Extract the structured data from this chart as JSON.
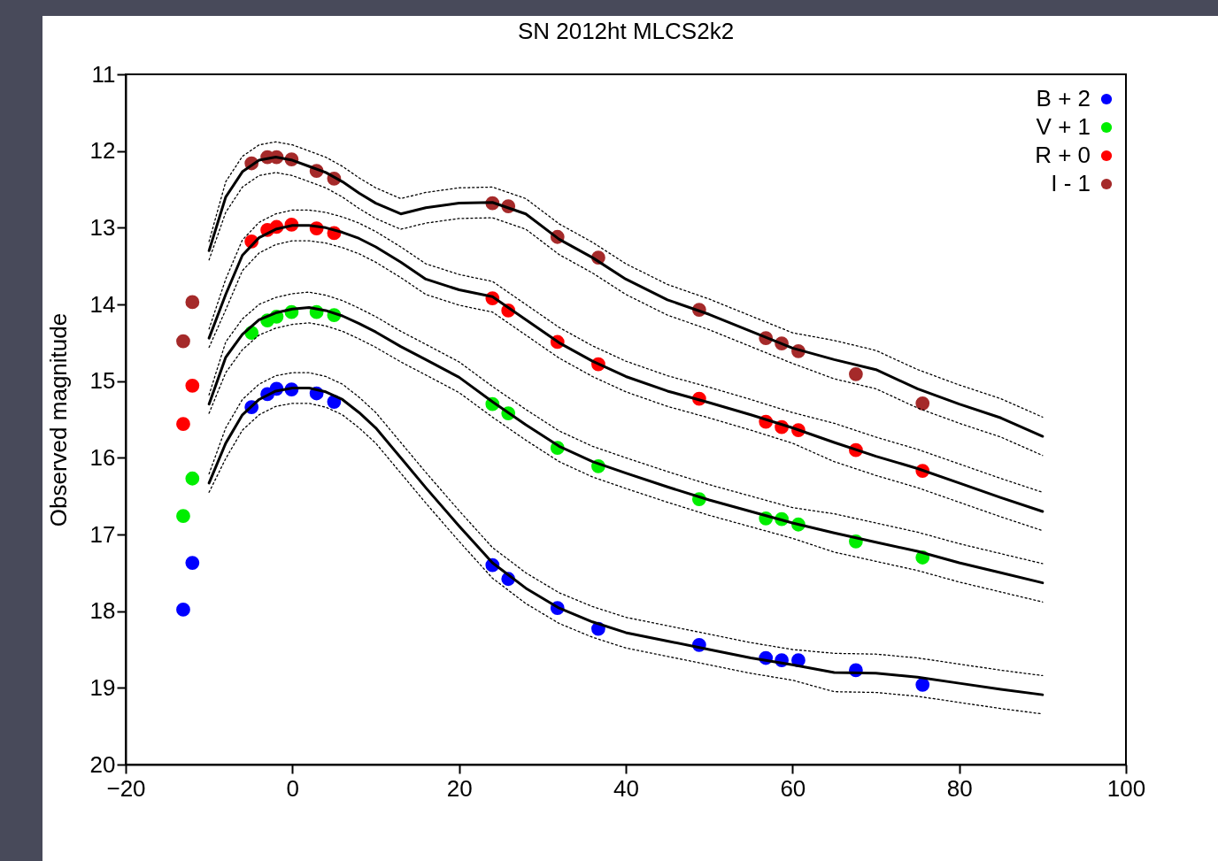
{
  "chart_data": {
    "type": "scatter",
    "title": "SN 2012ht MLCS2k2",
    "ylabel": "Observed magnitude",
    "x": [
      -13.1,
      -12.0,
      -4.9,
      -3.0,
      -1.9,
      -0.1,
      2.9,
      5.0,
      24.0,
      25.9,
      31.8,
      36.7,
      48.8,
      56.8,
      58.7,
      60.7,
      67.6,
      75.6
    ],
    "xlim": [
      -20,
      100
    ],
    "xticks": [
      -20,
      0,
      20,
      40,
      60,
      80,
      100
    ],
    "ylim": [
      20,
      11
    ],
    "yticks": [
      11,
      12,
      13,
      14,
      15,
      16,
      17,
      18,
      19,
      20
    ],
    "grid": false,
    "legend": "top right",
    "marker": "circle",
    "series": [
      {
        "name": "B + 2",
        "color": "#0000ff",
        "values": [
          17.98,
          17.37,
          15.34,
          15.17,
          15.1,
          15.11,
          15.16,
          15.27,
          17.4,
          17.58,
          17.96,
          18.23,
          18.44,
          18.61,
          18.64,
          18.64,
          18.77,
          18.96
        ]
      },
      {
        "name": "V + 1",
        "color": "#00ee00",
        "values": [
          16.76,
          16.27,
          14.37,
          14.21,
          14.16,
          14.1,
          14.1,
          14.14,
          15.3,
          15.42,
          15.87,
          16.11,
          16.54,
          16.79,
          16.8,
          16.87,
          17.09,
          17.3
        ]
      },
      {
        "name": "R + 0",
        "color": "#ff0000",
        "values": [
          15.56,
          15.06,
          13.18,
          13.03,
          12.99,
          12.96,
          13.01,
          13.07,
          13.92,
          14.08,
          14.49,
          14.78,
          15.23,
          15.53,
          15.6,
          15.64,
          15.9,
          16.17
        ]
      },
      {
        "name": "I - 1",
        "color": "#a52a2a",
        "values": [
          14.48,
          13.97,
          12.16,
          12.08,
          12.08,
          12.11,
          12.26,
          12.36,
          12.68,
          12.72,
          13.12,
          13.39,
          14.07,
          14.44,
          14.51,
          14.61,
          14.91,
          15.29
        ]
      },
      {
        "type": "line",
        "marker": "none",
        "line_style": "solid",
        "color": "#000000",
        "x": [
          -10,
          -8,
          -6,
          -4,
          -2,
          0,
          2,
          4,
          6,
          8,
          10,
          13,
          16,
          20,
          24,
          28,
          32,
          36,
          40,
          45,
          50,
          55,
          60,
          65,
          70,
          75,
          80,
          85,
          90
        ],
        "values": [
          16.33,
          15.81,
          15.44,
          15.24,
          15.13,
          15.09,
          15.09,
          15.14,
          15.24,
          15.41,
          15.61,
          16.0,
          16.39,
          16.89,
          17.37,
          17.7,
          17.96,
          18.14,
          18.28,
          18.39,
          18.5,
          18.61,
          18.7,
          18.8,
          18.81,
          18.86,
          18.94,
          19.02,
          19.09
        ]
      },
      {
        "type": "line",
        "marker": "none",
        "line_style": "dotted",
        "color": "#000000",
        "x": [
          -10,
          -8,
          -6,
          -4,
          -2,
          0,
          2,
          4,
          6,
          8,
          10,
          13,
          16,
          20,
          24,
          28,
          32,
          36,
          40,
          45,
          50,
          55,
          60,
          65,
          70,
          75,
          80,
          85,
          90
        ],
        "values": [
          16.21,
          15.61,
          15.24,
          15.04,
          14.93,
          14.89,
          14.89,
          14.94,
          15.04,
          15.21,
          15.41,
          15.8,
          16.19,
          16.69,
          17.17,
          17.5,
          17.76,
          17.94,
          18.08,
          18.19,
          18.3,
          18.41,
          18.5,
          18.55,
          18.56,
          18.61,
          18.69,
          18.77,
          18.84
        ]
      },
      {
        "type": "line",
        "marker": "none",
        "line_style": "dotted",
        "color": "#000000",
        "x": [
          -10,
          -8,
          -6,
          -4,
          -2,
          0,
          2,
          4,
          6,
          8,
          10,
          13,
          16,
          20,
          24,
          28,
          32,
          36,
          40,
          45,
          50,
          55,
          60,
          65,
          70,
          75,
          80,
          85,
          90
        ],
        "values": [
          16.45,
          16.01,
          15.64,
          15.44,
          15.33,
          15.29,
          15.29,
          15.34,
          15.44,
          15.61,
          15.81,
          16.2,
          16.59,
          17.09,
          17.57,
          17.9,
          18.16,
          18.34,
          18.48,
          18.59,
          18.7,
          18.81,
          18.9,
          19.05,
          19.06,
          19.11,
          19.19,
          19.27,
          19.34
        ]
      },
      {
        "type": "line",
        "marker": "none",
        "line_style": "solid",
        "color": "#000000",
        "x": [
          -10,
          -8,
          -6,
          -4,
          -2,
          0,
          2,
          4,
          6,
          8,
          10,
          13,
          16,
          20,
          24,
          28,
          32,
          36,
          40,
          45,
          50,
          55,
          60,
          65,
          70,
          75,
          80,
          85,
          90
        ],
        "values": [
          15.3,
          14.69,
          14.39,
          14.2,
          14.11,
          14.06,
          14.04,
          14.08,
          14.15,
          14.25,
          14.36,
          14.55,
          14.72,
          14.95,
          15.27,
          15.57,
          15.85,
          16.05,
          16.2,
          16.38,
          16.55,
          16.7,
          16.85,
          16.98,
          17.1,
          17.22,
          17.37,
          17.5,
          17.63
        ]
      },
      {
        "type": "line",
        "marker": "none",
        "line_style": "dotted",
        "color": "#000000",
        "x": [
          -10,
          -8,
          -6,
          -4,
          -2,
          0,
          2,
          4,
          6,
          8,
          10,
          13,
          16,
          20,
          24,
          28,
          32,
          36,
          40,
          45,
          50,
          55,
          60,
          65,
          70,
          75,
          80,
          85,
          90
        ],
        "values": [
          15.18,
          14.49,
          14.19,
          14.0,
          13.91,
          13.86,
          13.84,
          13.88,
          13.95,
          14.05,
          14.16,
          14.35,
          14.52,
          14.75,
          15.07,
          15.37,
          15.65,
          15.85,
          16.0,
          16.18,
          16.35,
          16.5,
          16.65,
          16.73,
          16.85,
          16.97,
          17.12,
          17.25,
          17.38
        ]
      },
      {
        "type": "line",
        "marker": "none",
        "line_style": "dotted",
        "color": "#000000",
        "x": [
          -10,
          -8,
          -6,
          -4,
          -2,
          0,
          2,
          4,
          6,
          8,
          10,
          13,
          16,
          20,
          24,
          28,
          32,
          36,
          40,
          45,
          50,
          55,
          60,
          65,
          70,
          75,
          80,
          85,
          90
        ],
        "values": [
          15.42,
          14.89,
          14.59,
          14.4,
          14.31,
          14.26,
          14.24,
          14.28,
          14.35,
          14.45,
          14.56,
          14.75,
          14.92,
          15.15,
          15.47,
          15.77,
          16.05,
          16.25,
          16.4,
          16.58,
          16.75,
          16.9,
          17.05,
          17.23,
          17.35,
          17.47,
          17.62,
          17.75,
          17.88
        ]
      },
      {
        "type": "line",
        "marker": "none",
        "line_style": "solid",
        "color": "#000000",
        "x": [
          -10,
          -8,
          -6,
          -4,
          -2,
          0,
          2,
          4,
          6,
          8,
          10,
          13,
          16,
          20,
          24,
          28,
          32,
          36,
          40,
          45,
          50,
          55,
          60,
          65,
          70,
          75,
          80,
          85,
          90
        ],
        "values": [
          14.44,
          13.87,
          13.36,
          13.13,
          13.02,
          12.97,
          12.97,
          13.0,
          13.06,
          13.14,
          13.25,
          13.45,
          13.67,
          13.81,
          13.9,
          14.2,
          14.5,
          14.74,
          14.94,
          15.13,
          15.28,
          15.44,
          15.61,
          15.8,
          15.98,
          16.14,
          16.33,
          16.52,
          16.7
        ]
      },
      {
        "type": "line",
        "marker": "none",
        "line_style": "dotted",
        "color": "#000000",
        "x": [
          -10,
          -8,
          -6,
          -4,
          -2,
          0,
          2,
          4,
          6,
          8,
          10,
          13,
          16,
          20,
          24,
          28,
          32,
          36,
          40,
          45,
          50,
          55,
          60,
          65,
          70,
          75,
          80,
          85,
          90
        ],
        "values": [
          14.32,
          13.67,
          13.16,
          12.93,
          12.82,
          12.77,
          12.77,
          12.8,
          12.86,
          12.94,
          13.05,
          13.25,
          13.47,
          13.61,
          13.7,
          14.0,
          14.3,
          14.54,
          14.74,
          14.93,
          15.08,
          15.24,
          15.41,
          15.55,
          15.73,
          15.89,
          16.08,
          16.27,
          16.45
        ]
      },
      {
        "type": "line",
        "marker": "none",
        "line_style": "dotted",
        "color": "#000000",
        "x": [
          -10,
          -8,
          -6,
          -4,
          -2,
          0,
          2,
          4,
          6,
          8,
          10,
          13,
          16,
          20,
          24,
          28,
          32,
          36,
          40,
          45,
          50,
          55,
          60,
          65,
          70,
          75,
          80,
          85,
          90
        ],
        "values": [
          14.56,
          14.07,
          13.56,
          13.33,
          13.22,
          13.17,
          13.17,
          13.2,
          13.26,
          13.34,
          13.45,
          13.65,
          13.87,
          14.01,
          14.1,
          14.4,
          14.7,
          14.94,
          15.14,
          15.33,
          15.48,
          15.64,
          15.81,
          16.05,
          16.23,
          16.39,
          16.58,
          16.77,
          16.95
        ]
      },
      {
        "type": "line",
        "marker": "none",
        "line_style": "solid",
        "color": "#000000",
        "x": [
          -10,
          -8,
          -6,
          -4,
          -2,
          0,
          2,
          4,
          6,
          8,
          10,
          13,
          16,
          20,
          24,
          28,
          32,
          36,
          40,
          45,
          50,
          55,
          60,
          65,
          70,
          75,
          80,
          85,
          90
        ],
        "values": [
          13.3,
          12.6,
          12.27,
          12.12,
          12.08,
          12.12,
          12.2,
          12.28,
          12.4,
          12.55,
          12.68,
          12.82,
          12.74,
          12.68,
          12.67,
          12.82,
          13.15,
          13.39,
          13.67,
          13.94,
          14.13,
          14.35,
          14.57,
          14.72,
          14.85,
          15.1,
          15.3,
          15.48,
          15.72
        ]
      },
      {
        "type": "line",
        "marker": "none",
        "line_style": "dotted",
        "color": "#000000",
        "x": [
          -10,
          -8,
          -6,
          -4,
          -2,
          0,
          2,
          4,
          6,
          8,
          10,
          13,
          16,
          20,
          24,
          28,
          32,
          36,
          40,
          45,
          50,
          55,
          60,
          65,
          70,
          75,
          80,
          85,
          90
        ],
        "values": [
          13.18,
          12.4,
          12.07,
          11.92,
          11.88,
          11.92,
          12.0,
          12.08,
          12.2,
          12.35,
          12.48,
          12.62,
          12.54,
          12.48,
          12.47,
          12.62,
          12.95,
          13.19,
          13.47,
          13.74,
          13.93,
          14.15,
          14.37,
          14.47,
          14.6,
          14.85,
          15.05,
          15.23,
          15.47
        ]
      },
      {
        "type": "line",
        "marker": "none",
        "line_style": "dotted",
        "color": "#000000",
        "x": [
          -10,
          -8,
          -6,
          -4,
          -2,
          0,
          2,
          4,
          6,
          8,
          10,
          13,
          16,
          20,
          24,
          28,
          32,
          36,
          40,
          45,
          50,
          55,
          60,
          65,
          70,
          75,
          80,
          85,
          90
        ],
        "values": [
          13.42,
          12.8,
          12.47,
          12.32,
          12.28,
          12.32,
          12.4,
          12.48,
          12.6,
          12.75,
          12.88,
          13.02,
          12.94,
          12.88,
          12.87,
          13.02,
          13.35,
          13.59,
          13.87,
          14.14,
          14.33,
          14.55,
          14.77,
          14.97,
          15.1,
          15.35,
          15.55,
          15.73,
          15.97
        ]
      }
    ]
  }
}
